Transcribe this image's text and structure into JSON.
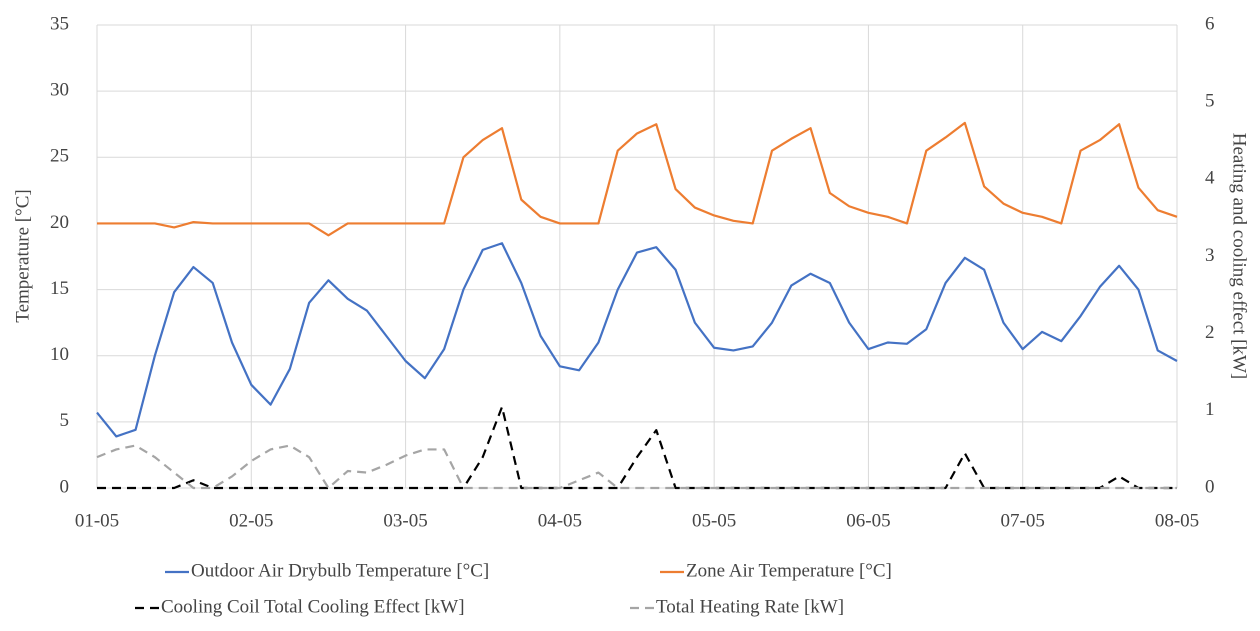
{
  "chart_data": {
    "type": "line",
    "ylabel": "Temperature [°C]",
    "y2label": "Heating and cooling effect [kW]",
    "x": [
      0,
      3,
      6,
      9,
      12,
      15,
      18,
      21,
      24,
      27,
      30,
      33,
      36,
      39,
      42,
      45,
      48,
      51,
      54,
      57,
      60,
      63,
      66,
      69,
      72,
      75,
      78,
      81,
      84,
      87,
      90,
      93,
      96,
      99,
      102,
      105,
      108,
      111,
      114,
      117,
      120,
      123,
      126,
      129,
      132,
      135,
      138,
      141,
      144,
      147,
      150,
      153,
      156,
      159,
      162,
      165,
      168
    ],
    "xlim": [
      0,
      168
    ],
    "xticks": [
      {
        "value": 0,
        "label": "01-05"
      },
      {
        "value": 24,
        "label": "02-05"
      },
      {
        "value": 48,
        "label": "03-05"
      },
      {
        "value": 72,
        "label": "04-05"
      },
      {
        "value": 96,
        "label": "05-05"
      },
      {
        "value": 120,
        "label": "06-05"
      },
      {
        "value": 144,
        "label": "07-05"
      },
      {
        "value": 168,
        "label": "08-05"
      }
    ],
    "ylim": [
      0,
      35
    ],
    "yticks": [
      0,
      5,
      10,
      15,
      20,
      25,
      30,
      35
    ],
    "y2lim": [
      0,
      6
    ],
    "y2ticks": [
      0,
      1,
      2,
      3,
      4,
      5,
      6
    ],
    "grid": true,
    "legend": "bottom",
    "series": [
      {
        "name": "Outdoor Air Drybulb Temperature [°C]",
        "color": "#4472c4",
        "dash": false,
        "values": [
          5.7,
          3.9,
          4.4,
          10,
          14.8,
          16.7,
          15.5,
          11,
          7.8,
          6.3,
          9,
          14,
          15.7,
          14.3,
          13.4,
          11.5,
          9.6,
          8.3,
          10.5,
          15,
          18,
          18.5,
          15.5,
          11.5,
          9.2,
          8.9,
          11,
          15,
          17.8,
          18.2,
          16.5,
          12.5,
          10.6,
          10.4,
          10.7,
          12.5,
          15.3,
          16.2,
          15.5,
          12.5,
          10.5,
          11,
          10.9,
          12,
          15.5,
          17.4,
          16.5,
          12.5,
          10.5,
          11.8,
          11.1,
          13,
          15.2,
          16.8,
          15,
          10.4,
          9.6
        ]
      },
      {
        "name": "Zone Air Temperature [°C]",
        "color": "#ed7d31",
        "dash": false,
        "values": [
          20,
          20,
          20,
          20,
          19.7,
          20.1,
          20,
          20,
          20,
          20,
          20,
          20,
          19.1,
          20,
          20,
          20,
          20,
          20,
          20,
          25,
          26.3,
          27.2,
          21.8,
          20.5,
          20,
          20,
          20,
          25.5,
          26.8,
          27.5,
          22.6,
          21.2,
          20.6,
          20.2,
          20,
          25.5,
          26.4,
          27.2,
          22.3,
          21.3,
          20.8,
          20.5,
          20,
          25.5,
          26.5,
          27.6,
          22.8,
          21.5,
          20.8,
          20.5,
          20,
          25.5,
          26.3,
          27.5,
          22.7,
          21,
          20.5
        ]
      },
      {
        "name": "Cooling Coil Total Cooling Effect [kW]",
        "color": "#000000",
        "dash": true,
        "axis": "y2",
        "values": [
          0,
          0,
          0,
          0,
          0,
          0.1,
          0,
          0,
          0,
          0,
          0,
          0,
          0,
          0,
          0,
          0,
          0,
          0,
          0,
          0,
          0.4,
          1.05,
          0,
          0,
          0,
          0,
          0,
          0,
          0.4,
          0.75,
          0,
          0,
          0,
          0,
          0,
          0,
          0,
          0,
          0,
          0,
          0,
          0,
          0,
          0,
          0,
          0.45,
          0,
          0,
          0,
          0,
          0,
          0,
          0,
          0.15,
          0,
          0,
          0
        ]
      },
      {
        "name": "Total Heating Rate [kW]",
        "color": "#a5a5a5",
        "dash": true,
        "axis": "y2",
        "values": [
          0.4,
          0.5,
          0.55,
          0.4,
          0.2,
          0,
          0,
          0.15,
          0.35,
          0.5,
          0.55,
          0.4,
          0,
          0.22,
          0.2,
          0.3,
          0.42,
          0.5,
          0.5,
          0,
          0,
          0,
          0,
          0,
          0,
          0.1,
          0.2,
          0,
          0,
          0,
          0,
          0,
          0,
          0,
          0,
          0,
          0,
          0,
          0,
          0,
          0,
          0,
          0,
          0,
          0,
          0,
          0,
          0,
          0,
          0,
          0,
          0,
          0,
          0,
          0,
          0,
          0
        ]
      }
    ]
  }
}
